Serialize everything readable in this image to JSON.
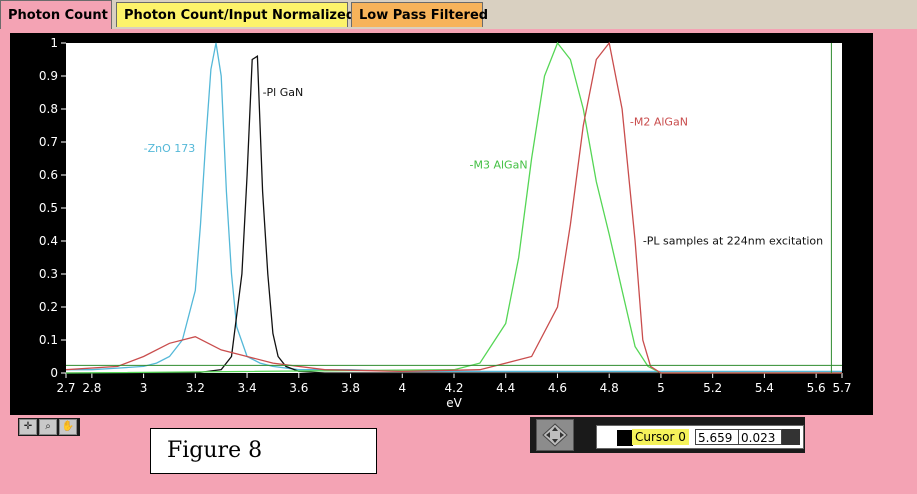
{
  "tabs": [
    {
      "label": "Photon Count",
      "active": true
    },
    {
      "label": "Photon Count/Input Normalized",
      "active": false
    },
    {
      "label": "Low Pass Filtered",
      "active": false
    }
  ],
  "figure_label": "Figure 8",
  "cursor": {
    "name": "Cursor 0",
    "x_value": "5.659",
    "y_value": "0.023"
  },
  "tools": [
    {
      "icon": "crosshair-icon"
    },
    {
      "icon": "zoom-icon"
    },
    {
      "icon": "pan-hand-icon"
    }
  ],
  "chart_data": {
    "type": "line",
    "xlabel": "eV",
    "xlim": [
      2.7,
      5.7
    ],
    "ylim": [
      0,
      1
    ],
    "x_ticks": [
      "2.7",
      "2.8",
      "3",
      "3.2",
      "3.4",
      "3.6",
      "3.8",
      "4",
      "4.2",
      "4.4",
      "4.6",
      "4.8",
      "5",
      "5.2",
      "5.4",
      "5.6",
      "5.7"
    ],
    "y_ticks": [
      "0",
      "0.1",
      "0.2",
      "0.3",
      "0.4",
      "0.5",
      "0.6",
      "0.7",
      "0.8",
      "0.9",
      "1"
    ],
    "cursor_line": {
      "x": 5.659,
      "y": 0.023
    },
    "series": [
      {
        "name": "-ZnO 173",
        "color": "#54b8d8",
        "x": [
          2.7,
          2.8,
          2.9,
          3.0,
          3.05,
          3.1,
          3.15,
          3.2,
          3.22,
          3.24,
          3.26,
          3.28,
          3.3,
          3.32,
          3.34,
          3.36,
          3.4,
          3.45,
          3.5,
          3.6,
          3.8,
          4.0,
          5.7
        ],
        "y": [
          0.01,
          0.01,
          0.015,
          0.02,
          0.03,
          0.05,
          0.1,
          0.25,
          0.45,
          0.7,
          0.92,
          1.0,
          0.9,
          0.55,
          0.3,
          0.14,
          0.05,
          0.03,
          0.02,
          0.01,
          0.01,
          0.005,
          0.005
        ]
      },
      {
        "name": "-Pl GaN",
        "color": "#111111",
        "x": [
          2.7,
          3.0,
          3.2,
          3.3,
          3.34,
          3.38,
          3.4,
          3.42,
          3.44,
          3.46,
          3.48,
          3.5,
          3.52,
          3.55,
          3.6,
          3.7,
          5.7
        ],
        "y": [
          0.0,
          0.0,
          0.0,
          0.01,
          0.05,
          0.3,
          0.6,
          0.95,
          0.96,
          0.55,
          0.3,
          0.12,
          0.05,
          0.02,
          0.005,
          0.0,
          0.0
        ]
      },
      {
        "name": "-M3 AlGaN",
        "color": "#55d655",
        "x": [
          2.7,
          4.2,
          4.3,
          4.4,
          4.45,
          4.5,
          4.55,
          4.6,
          4.65,
          4.7,
          4.75,
          4.8,
          4.85,
          4.9,
          4.95,
          5.0,
          5.7
        ],
        "y": [
          0.0,
          0.01,
          0.03,
          0.15,
          0.35,
          0.65,
          0.9,
          1.0,
          0.95,
          0.8,
          0.58,
          0.42,
          0.25,
          0.08,
          0.02,
          0.0,
          0.0
        ]
      },
      {
        "name": "-M2 AlGaN",
        "color": "#c94d4d",
        "x": [
          2.7,
          2.9,
          3.0,
          3.1,
          3.2,
          3.3,
          3.4,
          3.5,
          3.7,
          4.0,
          4.3,
          4.5,
          4.6,
          4.65,
          4.7,
          4.75,
          4.8,
          4.85,
          4.9,
          4.93,
          4.96,
          5.0,
          5.7
        ],
        "y": [
          0.01,
          0.02,
          0.05,
          0.09,
          0.11,
          0.07,
          0.05,
          0.03,
          0.01,
          0.005,
          0.01,
          0.05,
          0.2,
          0.45,
          0.75,
          0.95,
          1.0,
          0.8,
          0.4,
          0.1,
          0.02,
          0.0,
          0.0
        ]
      }
    ],
    "annotations": [
      "-PL samples at 224nm excitation"
    ]
  }
}
